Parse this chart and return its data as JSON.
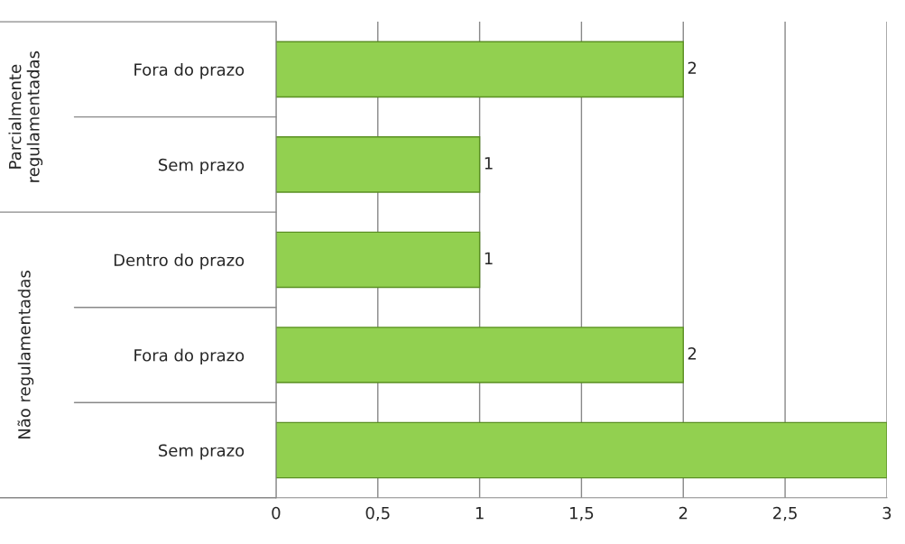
{
  "chart_data": {
    "type": "bar",
    "orientation": "horizontal",
    "categories": [
      "Fora do prazo",
      "Sem prazo",
      "Dentro do prazo",
      "Fora do prazo",
      "Sem prazo"
    ],
    "values": [
      2,
      1,
      1,
      2,
      3
    ],
    "value_labels": [
      "2",
      "1",
      "1",
      "2",
      null
    ],
    "color": "#92d050",
    "xlim": [
      0,
      3
    ],
    "xticks": [
      0,
      {
        "value": 0.5,
        "label": "0,5"
      },
      1,
      {
        "value": 1.5,
        "label": "1,5"
      },
      2,
      {
        "value": 2.5,
        "label": "2,5"
      },
      3
    ],
    "grid": "x",
    "annotations": [
      "Parcialmente regulamentadas",
      "Não regulamentadas"
    ]
  }
}
